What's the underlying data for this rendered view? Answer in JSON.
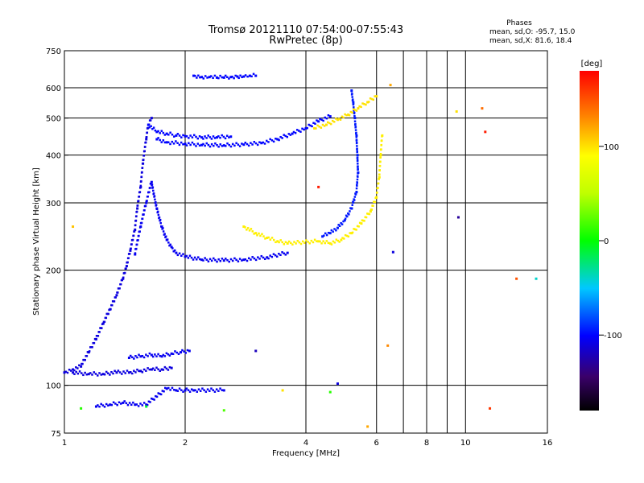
{
  "chart_data": {
    "type": "scatter",
    "title": "Tromsø 20121110 07:54:00-07:55:43",
    "subtitle": "RwPretec (8p)",
    "xlabel": "Frequency [MHz]",
    "ylabel": "Stationary phase Virtual Height [km]",
    "x_scale": "log",
    "y_scale": "log",
    "xlim": [
      1,
      16
    ],
    "ylim": [
      75,
      750
    ],
    "x_ticks": [
      1,
      2,
      4,
      6,
      8,
      10,
      16
    ],
    "y_ticks": [
      75,
      100,
      200,
      300,
      400,
      500,
      600,
      750
    ],
    "x_gridlines": [
      2,
      4,
      6,
      7,
      8,
      9,
      10
    ],
    "y_gridlines": [
      100,
      200,
      300,
      400,
      500,
      600
    ],
    "info": {
      "heading": "Phases",
      "line1": "mean, sd,O: -95.7, 15.0",
      "line2": "mean, sd,X:  81.6, 18.4"
    },
    "colorbar": {
      "label": "[deg]",
      "range": [
        -180,
        180
      ],
      "ticks": [
        100,
        0,
        -100
      ],
      "tick_labels": [
        "100",
        "0",
        "-100"
      ]
    },
    "traces": [
      {
        "name": "",
        "phase": -110,
        "points": [
          [
            1.0,
            108
          ],
          [
            1.05,
            110
          ],
          [
            1.1,
            112
          ],
          [
            1.15,
            122
          ],
          [
            1.2,
            132
          ],
          [
            1.25,
            145
          ],
          [
            1.3,
            158
          ],
          [
            1.35,
            172
          ],
          [
            1.4,
            190
          ],
          [
            1.43,
            205
          ],
          [
            1.46,
            225
          ],
          [
            1.5,
            255
          ],
          [
            1.52,
            290
          ],
          [
            1.55,
            330
          ],
          [
            1.57,
            380
          ],
          [
            1.6,
            440
          ],
          [
            1.62,
            480
          ],
          [
            1.65,
            500
          ]
        ]
      },
      {
        "name": "",
        "phase": -105,
        "points": [
          [
            1.5,
            220
          ],
          [
            1.55,
            260
          ],
          [
            1.6,
            300
          ],
          [
            1.65,
            340
          ],
          [
            1.7,
            290
          ],
          [
            1.75,
            260
          ],
          [
            1.8,
            240
          ],
          [
            1.85,
            230
          ],
          [
            1.9,
            222
          ],
          [
            2.0,
            217
          ],
          [
            2.2,
            213
          ],
          [
            2.5,
            212
          ],
          [
            2.8,
            213
          ],
          [
            3.2,
            216
          ],
          [
            3.6,
            222
          ]
        ]
      },
      {
        "name": "",
        "phase": -100,
        "points": [
          [
            1.62,
            480
          ],
          [
            1.7,
            460
          ],
          [
            1.8,
            455
          ],
          [
            1.9,
            450
          ],
          [
            2.0,
            448
          ],
          [
            2.2,
            445
          ],
          [
            2.4,
            445
          ],
          [
            2.6,
            447
          ]
        ]
      },
      {
        "name": "",
        "phase": -100,
        "points": [
          [
            1.7,
            440
          ],
          [
            1.8,
            432
          ],
          [
            2.0,
            428
          ],
          [
            2.2,
            425
          ],
          [
            2.5,
            424
          ],
          [
            2.8,
            426
          ],
          [
            3.1,
            430
          ],
          [
            3.4,
            440
          ],
          [
            3.7,
            455
          ],
          [
            4.0,
            470
          ],
          [
            4.3,
            490
          ],
          [
            4.6,
            505
          ]
        ]
      },
      {
        "name": "",
        "phase": -95,
        "points": [
          [
            5.2,
            590
          ],
          [
            5.25,
            550
          ],
          [
            5.3,
            500
          ],
          [
            5.35,
            450
          ],
          [
            5.38,
            400
          ],
          [
            5.4,
            360
          ],
          [
            5.35,
            320
          ],
          [
            5.2,
            290
          ],
          [
            5.0,
            270
          ],
          [
            4.8,
            258
          ],
          [
            4.6,
            250
          ],
          [
            4.4,
            245
          ]
        ]
      },
      {
        "name": "",
        "phase": 95,
        "points": [
          [
            2.8,
            260
          ],
          [
            3.0,
            250
          ],
          [
            3.2,
            243
          ],
          [
            3.4,
            238
          ],
          [
            3.6,
            235
          ],
          [
            4.3,
            238
          ],
          [
            4.6,
            235
          ],
          [
            4.9,
            240
          ],
          [
            5.2,
            250
          ],
          [
            5.5,
            265
          ],
          [
            5.8,
            285
          ],
          [
            6.0,
            310
          ],
          [
            6.1,
            350
          ],
          [
            6.15,
            400
          ],
          [
            6.2,
            450
          ]
        ]
      },
      {
        "name": "",
        "phase": 100,
        "points": [
          [
            4.2,
            470
          ],
          [
            4.5,
            480
          ],
          [
            4.8,
            495
          ],
          [
            5.1,
            510
          ],
          [
            5.4,
            530
          ],
          [
            5.7,
            550
          ],
          [
            6.0,
            570
          ]
        ]
      },
      {
        "name": "",
        "phase": -110,
        "points": [
          [
            1.05,
            108
          ],
          [
            1.15,
            107
          ],
          [
            1.25,
            107
          ],
          [
            1.35,
            108
          ],
          [
            1.45,
            108
          ],
          [
            1.55,
            109
          ],
          [
            1.65,
            110
          ],
          [
            1.75,
            110
          ],
          [
            1.85,
            111
          ]
        ]
      },
      {
        "name": "",
        "phase": -105,
        "points": [
          [
            1.45,
            118
          ],
          [
            1.55,
            119
          ],
          [
            1.65,
            120
          ],
          [
            1.75,
            119
          ],
          [
            1.85,
            121
          ],
          [
            1.95,
            122
          ],
          [
            2.05,
            123
          ]
        ]
      },
      {
        "name": "",
        "phase": -105,
        "points": [
          [
            1.2,
            88
          ],
          [
            1.3,
            89
          ],
          [
            1.4,
            90
          ],
          [
            1.5,
            89
          ],
          [
            1.6,
            89
          ],
          [
            1.8,
            98
          ],
          [
            1.9,
            97
          ],
          [
            2.0,
            97
          ],
          [
            2.1,
            97
          ],
          [
            2.5,
            97
          ]
        ]
      },
      {
        "name": "",
        "phase": -100,
        "points": [
          [
            2.1,
            645
          ],
          [
            2.2,
            640
          ],
          [
            2.3,
            640
          ],
          [
            2.4,
            638
          ],
          [
            2.5,
            638
          ],
          [
            2.6,
            640
          ],
          [
            2.7,
            642
          ],
          [
            2.8,
            642
          ],
          [
            2.9,
            645
          ],
          [
            3.0,
            645
          ]
        ]
      }
    ],
    "scatter_points": [
      {
        "x": 6.5,
        "y": 610,
        "phase": 120
      },
      {
        "x": 9.6,
        "y": 275,
        "phase": -130
      },
      {
        "x": 13.4,
        "y": 190,
        "phase": 150
      },
      {
        "x": 15.0,
        "y": 190,
        "phase": -40
      },
      {
        "x": 11.0,
        "y": 530,
        "phase": 140
      },
      {
        "x": 11.2,
        "y": 460,
        "phase": 170
      },
      {
        "x": 11.5,
        "y": 87,
        "phase": 160
      },
      {
        "x": 9.5,
        "y": 520,
        "phase": 100
      },
      {
        "x": 6.6,
        "y": 223,
        "phase": -110
      },
      {
        "x": 6.4,
        "y": 127,
        "phase": 130
      },
      {
        "x": 5.7,
        "y": 78,
        "phase": 120
      },
      {
        "x": 4.8,
        "y": 101,
        "phase": -110
      },
      {
        "x": 4.6,
        "y": 96,
        "phase": 10
      },
      {
        "x": 1.1,
        "y": 87,
        "phase": 10
      },
      {
        "x": 2.5,
        "y": 86,
        "phase": 20
      },
      {
        "x": 3.0,
        "y": 123,
        "phase": -120
      },
      {
        "x": 1.05,
        "y": 260,
        "phase": 110
      },
      {
        "x": 1.6,
        "y": 88,
        "phase": -10
      },
      {
        "x": 3.5,
        "y": 97,
        "phase": 100
      },
      {
        "x": 4.3,
        "y": 330,
        "phase": 170
      }
    ]
  }
}
